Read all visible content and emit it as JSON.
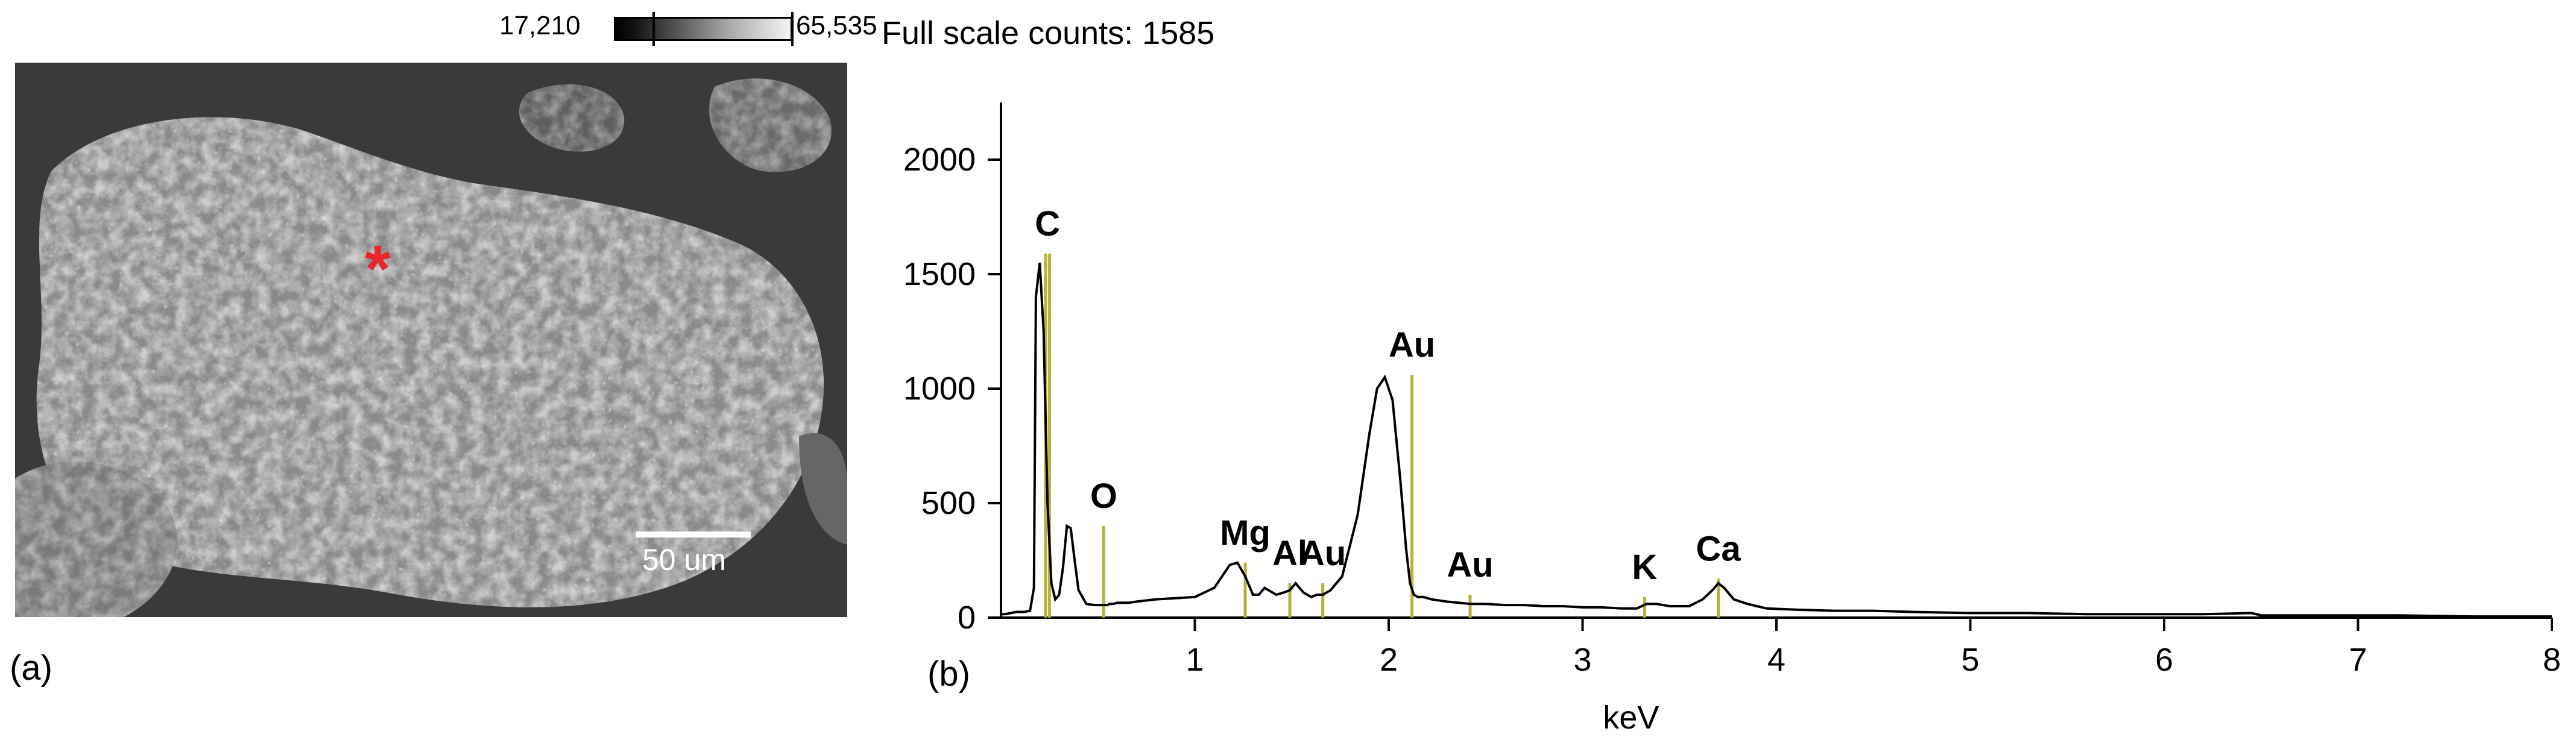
{
  "panel_a": {
    "label": "(a)",
    "colorbar": {
      "min_label": "17,210",
      "max_label": "65,535"
    },
    "scalebar_label": "50 um",
    "marker": "*",
    "marker_color": "#e8262b"
  },
  "panel_b": {
    "label": "(b)"
  },
  "chart_data": {
    "type": "line",
    "title": "Full scale counts: 1585",
    "xlabel": "keV",
    "ylabel": "",
    "xlim": [
      0,
      8
    ],
    "ylim": [
      0,
      2250
    ],
    "x_ticks": [
      1,
      2,
      3,
      4,
      5,
      6,
      7,
      8
    ],
    "y_ticks": [
      0,
      500,
      1000,
      1500,
      2000
    ],
    "line_color": "#000000",
    "marker_line_color": "#b5b33a",
    "series": [
      {
        "x": [
          0.0,
          0.02,
          0.05,
          0.08,
          0.1,
          0.12,
          0.15,
          0.17,
          0.18,
          0.2,
          0.22,
          0.24,
          0.26,
          0.28,
          0.3,
          0.32,
          0.34,
          0.36,
          0.38,
          0.4,
          0.44,
          0.48,
          0.5,
          0.52,
          0.53,
          0.54,
          0.55,
          0.56,
          0.58,
          0.6,
          0.62,
          0.66,
          0.7,
          0.75,
          0.8,
          0.9,
          1.0,
          1.1,
          1.18,
          1.22,
          1.26,
          1.3,
          1.33,
          1.36,
          1.42,
          1.46,
          1.49,
          1.52,
          1.56,
          1.6,
          1.63,
          1.66,
          1.7,
          1.76,
          1.84,
          1.9,
          1.94,
          1.98,
          2.02,
          2.06,
          2.09,
          2.11,
          2.13,
          2.15,
          2.18,
          2.22,
          2.26,
          2.3,
          2.36,
          2.42,
          2.5,
          2.6,
          2.7,
          2.8,
          2.9,
          3.0,
          3.1,
          3.2,
          3.28,
          3.33,
          3.38,
          3.45,
          3.55,
          3.62,
          3.67,
          3.7,
          3.73,
          3.78,
          3.85,
          3.95,
          4.1,
          4.3,
          4.5,
          4.7,
          5.0,
          5.3,
          5.6,
          5.9,
          6.2,
          6.45,
          6.5,
          6.8,
          7.2,
          7.6,
          8.0
        ],
        "y": [
          15,
          15,
          20,
          25,
          25,
          25,
          30,
          130,
          1400,
          1550,
          1250,
          500,
          150,
          80,
          100,
          220,
          400,
          390,
          250,
          120,
          60,
          55,
          55,
          55,
          55,
          55,
          55,
          60,
          60,
          65,
          65,
          65,
          70,
          75,
          80,
          85,
          90,
          130,
          230,
          240,
          180,
          100,
          100,
          130,
          100,
          110,
          120,
          150,
          110,
          90,
          100,
          100,
          120,
          180,
          450,
          800,
          1000,
          1050,
          950,
          600,
          300,
          150,
          100,
          90,
          90,
          80,
          75,
          70,
          65,
          60,
          60,
          55,
          55,
          50,
          50,
          45,
          45,
          40,
          40,
          60,
          60,
          50,
          50,
          80,
          120,
          150,
          130,
          80,
          60,
          40,
          35,
          30,
          30,
          25,
          20,
          20,
          15,
          15,
          15,
          20,
          10,
          10,
          10,
          5,
          5
        ]
      }
    ],
    "annotations": [
      {
        "label": "C",
        "x": 0.24,
        "y": 1590,
        "line_x": [
          0.23,
          0.25
        ],
        "line_top": 1590
      },
      {
        "label": "O",
        "x": 0.53,
        "y": 400,
        "line_x": [
          0.53
        ],
        "line_top": 400
      },
      {
        "label": "Mg",
        "x": 1.26,
        "y": 240,
        "line_x": [
          1.26
        ],
        "line_top": 240
      },
      {
        "label": "Al",
        "x": 1.49,
        "y": 150,
        "line_x": [
          1.49
        ],
        "line_top": 150
      },
      {
        "label": "Au",
        "x": 1.66,
        "y": 150,
        "line_x": [
          1.66
        ],
        "line_top": 150
      },
      {
        "label": "Au",
        "x": 2.12,
        "y": 1060,
        "line_x": [
          2.12
        ],
        "line_top": 1060
      },
      {
        "label": "Au",
        "x": 2.42,
        "y": 100,
        "line_x": [
          2.42
        ],
        "line_top": 100
      },
      {
        "label": "K",
        "x": 3.32,
        "y": 90,
        "line_x": [
          3.32
        ],
        "line_top": 90
      },
      {
        "label": "Ca",
        "x": 3.7,
        "y": 170,
        "line_x": [
          3.7
        ],
        "line_top": 170
      }
    ]
  }
}
